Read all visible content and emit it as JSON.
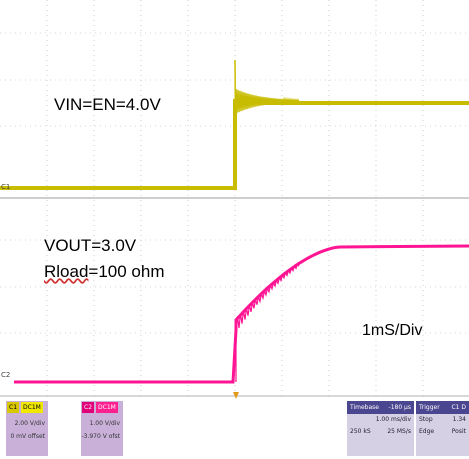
{
  "annotations": {
    "vin": "VIN=EN=4.0V",
    "vout": "VOUT=3.0V",
    "rload_prefix": "Rload",
    "rload_suffix": "=100 ohm",
    "timebase": "1mS/Div"
  },
  "markers": {
    "c1": "C1",
    "c2": "C2"
  },
  "channels": [
    {
      "tag": "C1",
      "coupling": "DC1M",
      "scale": "2.00 V/div",
      "offset": "0 mV offset",
      "color": "#c8bc00"
    },
    {
      "tag": "C2",
      "coupling": "DC1M",
      "scale": "1.00 V/div",
      "offset": "-3.970 V ofst",
      "color": "#ff1493"
    }
  ],
  "timebase_panel": {
    "header_label": "Timebase",
    "header_value": "-180 µs",
    "row1_value": "1.00 ms/div",
    "row2_left": "250 kS",
    "row2_right": "25 MS/s"
  },
  "trigger_panel": {
    "header_label": "Trigger",
    "header_value": "C1 D",
    "row1_left": "Stop",
    "row1_right": "1.34",
    "row2_left": "Edge",
    "row2_right": "Posit"
  },
  "colors": {
    "ch1": "#c8bc00",
    "ch2": "#ff1493",
    "grid": "#b0b0b0"
  }
}
